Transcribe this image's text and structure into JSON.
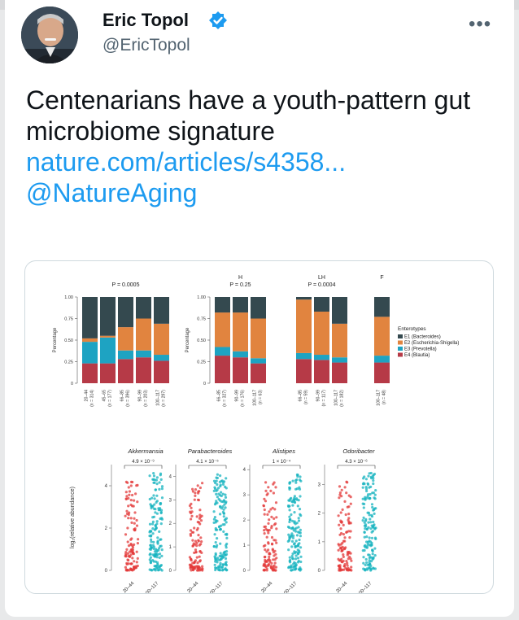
{
  "tweet": {
    "author_name": "Eric Topol",
    "handle": "@EricTopol",
    "more_icon": "more-options-icon",
    "text": "Centenarians have a youth-pattern gut microbiome signature",
    "link": "nature.com/articles/s4358...",
    "mention": "@NatureAging"
  },
  "chart_data": [
    {
      "type": "bar",
      "stacked": true,
      "ylabel": "Percentage",
      "yticks": [
        "0",
        "0.25",
        "0.50",
        "0.75",
        "1.00"
      ],
      "legend_title": "Enterotypes",
      "series_names": [
        "E1 (Bacteroides)",
        "E2 (Escherichia-Shigella)",
        "E3 (Prevotella)",
        "E4 (Blautia)"
      ],
      "colors": [
        "#34494f",
        "#e1843f",
        "#1ea3c2",
        "#b63a47"
      ],
      "panels": [
        {
          "top_label": "",
          "p_label": "P = 0.0005",
          "categories": [
            "20–44",
            "45–65",
            "66–85",
            "90–99",
            "100–117"
          ],
          "ns": [
            "(n = 314)",
            "(n = 177)",
            "(n = 396)",
            "(n = 203)",
            "(n = 297)"
          ],
          "stacks": [
            [
              0.23,
              0.25,
              0.04,
              0.48
            ],
            [
              0.23,
              0.3,
              0.02,
              0.45
            ],
            [
              0.28,
              0.1,
              0.27,
              0.35
            ],
            [
              0.3,
              0.08,
              0.37,
              0.25
            ],
            [
              0.26,
              0.07,
              0.36,
              0.31
            ]
          ]
        },
        {
          "top_label": "H",
          "p_label": "P = 0.25",
          "categories": [
            "66–85",
            "90–99",
            "100–117"
          ],
          "ns": [
            "(n = 327)",
            "(n = 176)",
            "(n = 63)"
          ],
          "stacks": [
            [
              0.32,
              0.1,
              0.4,
              0.18
            ],
            [
              0.3,
              0.07,
              0.45,
              0.18
            ],
            [
              0.23,
              0.06,
              0.46,
              0.25
            ]
          ]
        },
        {
          "top_label": "LH",
          "p_label": "P = 0.0004",
          "categories": [
            "66–85",
            "90–99",
            "100–117"
          ],
          "ns": [
            "(n = 59)",
            "(n = 117)",
            "(n = 182)"
          ],
          "stacks": [
            [
              0.28,
              0.07,
              0.62,
              0.03
            ],
            [
              0.27,
              0.06,
              0.5,
              0.17
            ],
            [
              0.24,
              0.06,
              0.39,
              0.31
            ]
          ]
        },
        {
          "top_label": "F",
          "p_label": "",
          "categories": [
            "100–117"
          ],
          "ns": [
            "(n = 48)"
          ],
          "stacks": [
            [
              0.24,
              0.08,
              0.45,
              0.23
            ]
          ]
        }
      ]
    },
    {
      "type": "scatter",
      "ylabel": "log₂(relative abundance)",
      "colors": [
        "#e33a3a",
        "#16b3bf"
      ],
      "panels": [
        {
          "title": "Akkermansia",
          "p_label": "4.9 × 10⁻⁹",
          "categories": [
            "20–44",
            "100–117"
          ],
          "yticks": [
            "0",
            "2",
            "4"
          ],
          "ymax": 5
        },
        {
          "title": "Parabacteroides",
          "p_label": "4.1 × 10⁻⁵",
          "categories": [
            "20–44",
            "100–117"
          ],
          "yticks": [
            "0",
            "1",
            "2",
            "3",
            "4"
          ],
          "ymax": 4.5
        },
        {
          "title": "Alistipes",
          "p_label": "1 × 10⁻⁴",
          "categories": [
            "20–44",
            "100–117"
          ],
          "yticks": [
            "0",
            "1",
            "2",
            "3",
            "4"
          ],
          "ymax": 4.2
        },
        {
          "title": "Odoribacter",
          "p_label": "4.3 × 10⁻⁶",
          "categories": [
            "20–44",
            "100–117"
          ],
          "yticks": [
            "0",
            "1",
            "2",
            "3"
          ],
          "ymax": 3.7
        }
      ]
    }
  ]
}
